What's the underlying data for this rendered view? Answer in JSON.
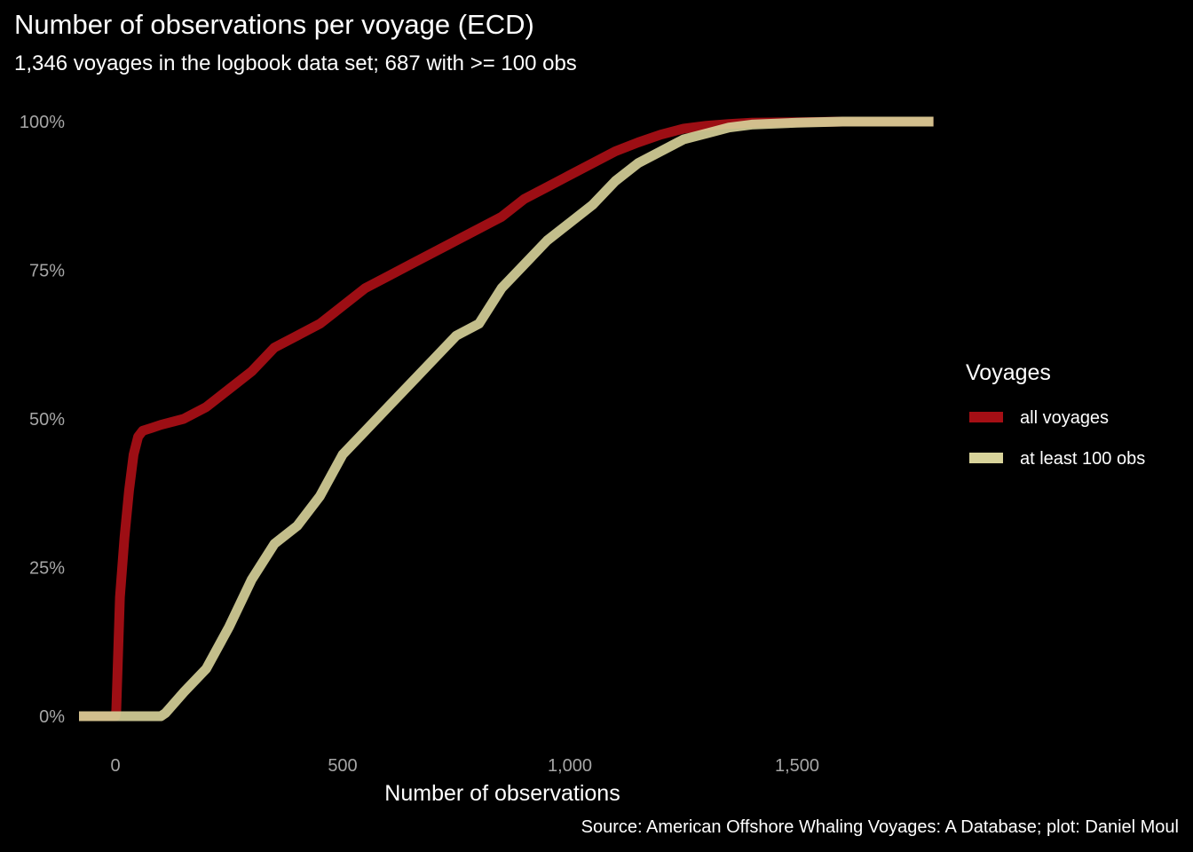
{
  "chart_data": {
    "type": "line",
    "title": "Number of observations per voyage (ECD)",
    "subtitle": "1,346 voyages in the logbook data set; 687 with >= 100 obs",
    "caption": "Source: American Offshore Whaling Voyages: A Database; plot: Daniel Moul",
    "xlabel": "Number of observations",
    "ylabel": "",
    "xlim": [
      -80,
      1800
    ],
    "ylim": [
      0,
      1
    ],
    "x_ticks": [
      0,
      500,
      1000,
      1500
    ],
    "x_tick_labels": [
      "0",
      "500",
      "1,000",
      "1,500"
    ],
    "y_ticks": [
      0,
      0.25,
      0.5,
      0.75,
      1
    ],
    "y_tick_labels": [
      "0%",
      "25%",
      "50%",
      "75%",
      "100%"
    ],
    "grid": false,
    "legend": {
      "title": "Voyages",
      "position": "right"
    },
    "series": [
      {
        "name": "all voyages",
        "color": "#a50f15",
        "points": [
          [
            -80,
            0
          ],
          [
            0,
            0
          ],
          [
            2,
            0.01
          ],
          [
            10,
            0.2
          ],
          [
            20,
            0.3
          ],
          [
            30,
            0.38
          ],
          [
            40,
            0.44
          ],
          [
            50,
            0.47
          ],
          [
            60,
            0.48
          ],
          [
            80,
            0.485
          ],
          [
            100,
            0.49
          ],
          [
            150,
            0.5
          ],
          [
            200,
            0.52
          ],
          [
            250,
            0.55
          ],
          [
            300,
            0.58
          ],
          [
            350,
            0.62
          ],
          [
            400,
            0.64
          ],
          [
            450,
            0.66
          ],
          [
            500,
            0.69
          ],
          [
            550,
            0.72
          ],
          [
            600,
            0.74
          ],
          [
            650,
            0.76
          ],
          [
            700,
            0.78
          ],
          [
            750,
            0.8
          ],
          [
            800,
            0.82
          ],
          [
            850,
            0.84
          ],
          [
            900,
            0.87
          ],
          [
            950,
            0.89
          ],
          [
            1000,
            0.91
          ],
          [
            1050,
            0.93
          ],
          [
            1100,
            0.95
          ],
          [
            1150,
            0.965
          ],
          [
            1200,
            0.978
          ],
          [
            1250,
            0.988
          ],
          [
            1300,
            0.993
          ],
          [
            1350,
            0.996
          ],
          [
            1400,
            0.998
          ],
          [
            1500,
            0.999
          ],
          [
            1600,
            1
          ],
          [
            1800,
            1
          ]
        ]
      },
      {
        "name": "at least 100 obs",
        "color": "#d8d39a",
        "points": [
          [
            -80,
            0
          ],
          [
            100,
            0
          ],
          [
            110,
            0.005
          ],
          [
            150,
            0.04
          ],
          [
            200,
            0.08
          ],
          [
            250,
            0.15
          ],
          [
            300,
            0.23
          ],
          [
            350,
            0.29
          ],
          [
            400,
            0.32
          ],
          [
            450,
            0.37
          ],
          [
            500,
            0.44
          ],
          [
            550,
            0.48
          ],
          [
            600,
            0.52
          ],
          [
            650,
            0.56
          ],
          [
            700,
            0.6
          ],
          [
            750,
            0.64
          ],
          [
            800,
            0.66
          ],
          [
            850,
            0.72
          ],
          [
            900,
            0.76
          ],
          [
            950,
            0.8
          ],
          [
            1000,
            0.83
          ],
          [
            1050,
            0.86
          ],
          [
            1100,
            0.9
          ],
          [
            1150,
            0.93
          ],
          [
            1200,
            0.95
          ],
          [
            1250,
            0.97
          ],
          [
            1300,
            0.98
          ],
          [
            1350,
            0.99
          ],
          [
            1400,
            0.995
          ],
          [
            1500,
            0.998
          ],
          [
            1600,
            1
          ],
          [
            1800,
            1
          ]
        ]
      }
    ]
  }
}
